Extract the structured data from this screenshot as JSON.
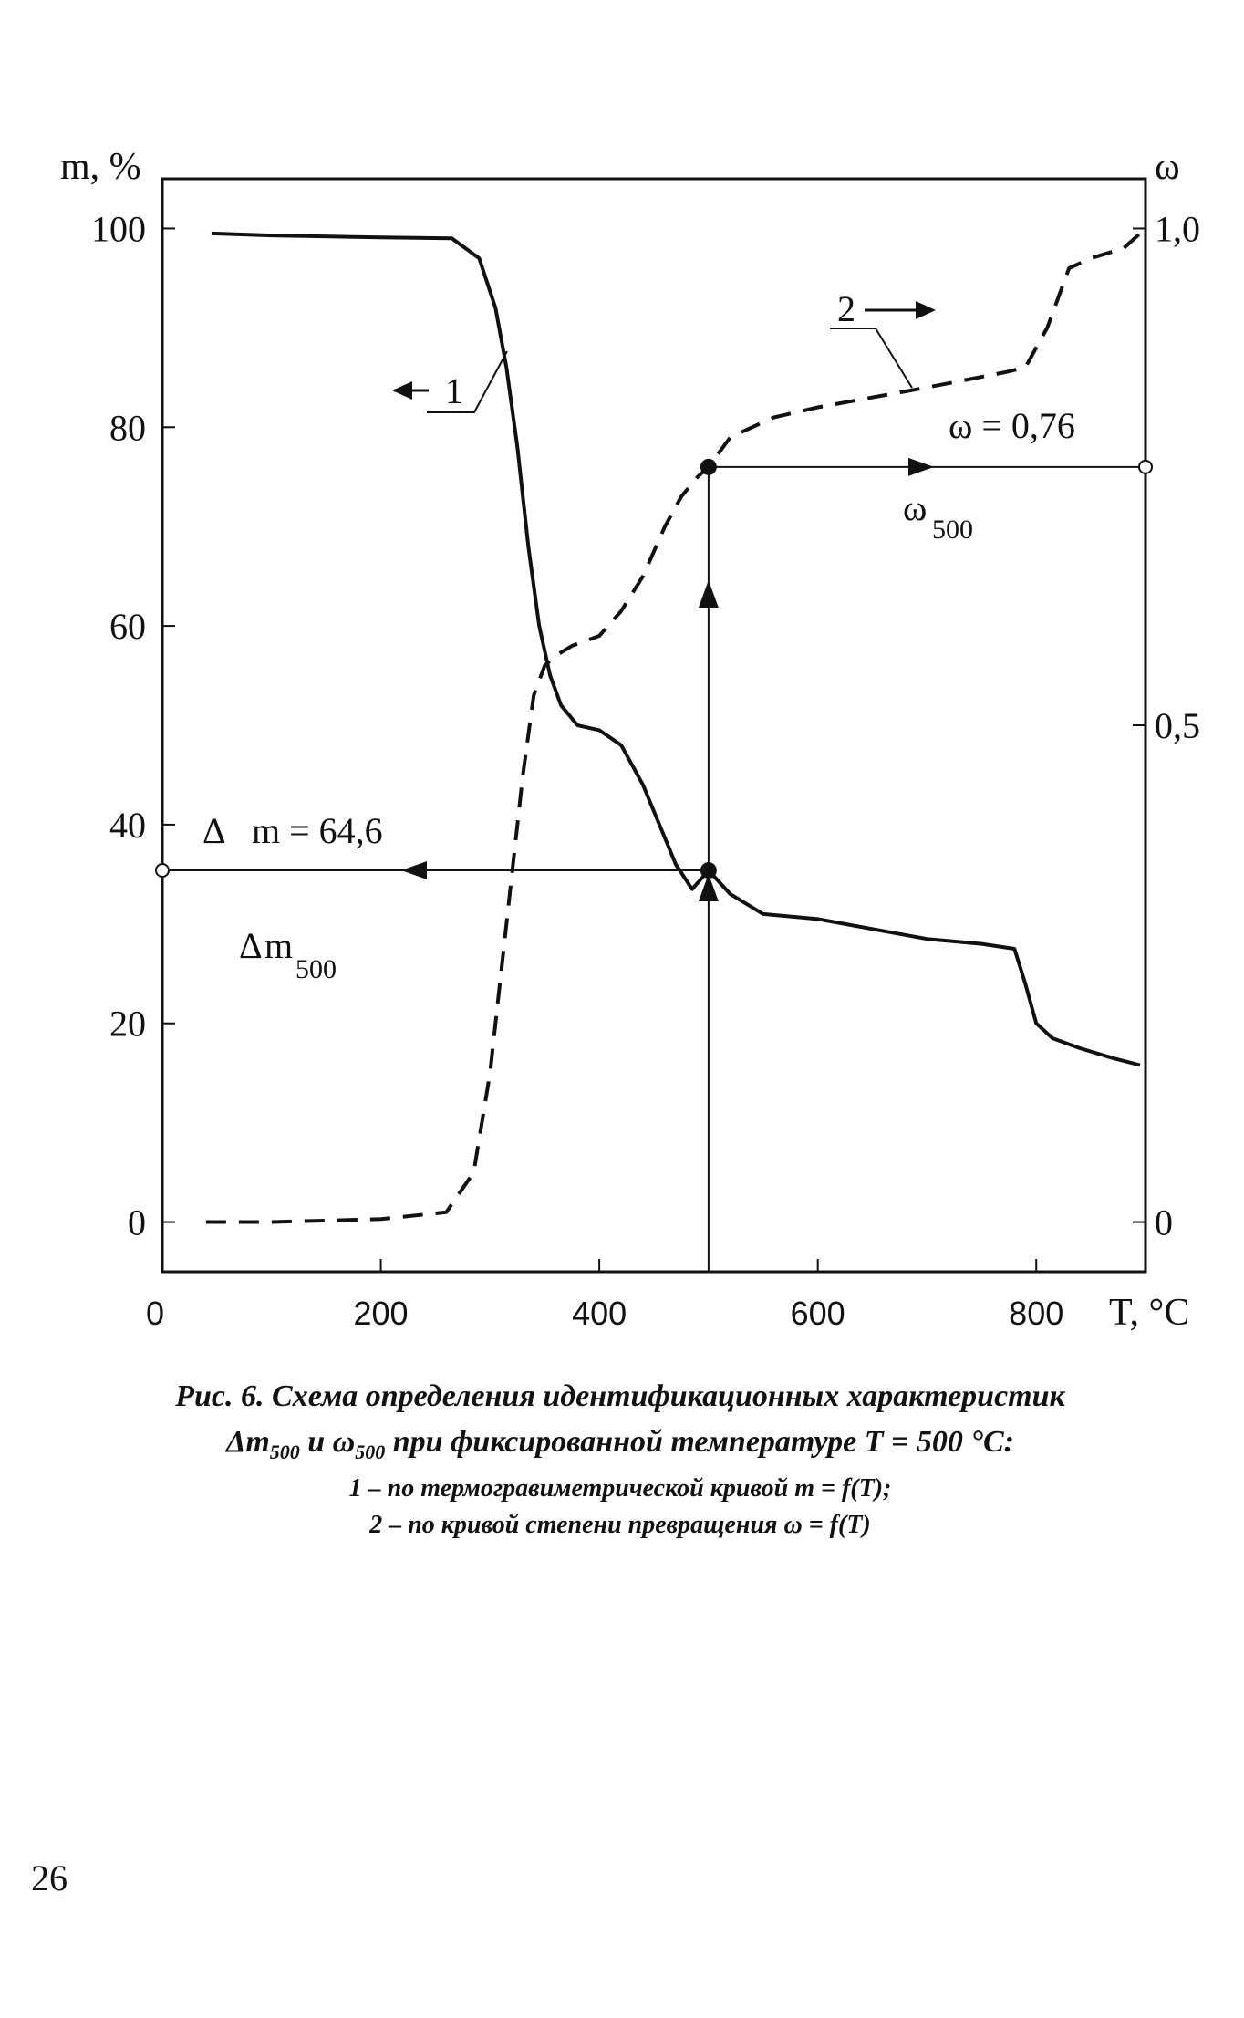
{
  "chart_data": {
    "type": "line",
    "x_axis": {
      "label": "T, °C",
      "range": [
        0,
        900
      ],
      "ticks": [
        0,
        200,
        400,
        600,
        800
      ]
    },
    "y_axis_left": {
      "label": "m, %",
      "range": [
        -5,
        105
      ],
      "ticks": [
        0,
        20,
        40,
        60,
        80,
        100
      ]
    },
    "y_axis_right": {
      "label": "ω",
      "range": [
        -0.05,
        1.05
      ],
      "ticks": [
        0,
        0.5,
        1.0
      ],
      "tick_labels": [
        "0",
        "0,5",
        "1,0"
      ]
    },
    "grid": false,
    "series": [
      {
        "name": "1",
        "axis": "left",
        "style": "solid",
        "x": [
          45,
          100,
          200,
          265,
          290,
          305,
          315,
          325,
          335,
          345,
          355,
          365,
          380,
          400,
          420,
          440,
          455,
          470,
          485,
          500,
          520,
          550,
          600,
          650,
          700,
          750,
          780,
          790,
          800,
          815,
          840,
          870,
          895
        ],
        "y": [
          99.5,
          99.3,
          99.1,
          99,
          97,
          92,
          86,
          78,
          68,
          60,
          55,
          52,
          50,
          49.5,
          48,
          44,
          40,
          36,
          33.5,
          35.4,
          33,
          31,
          30.5,
          29.5,
          28.5,
          28,
          27.5,
          24,
          20,
          18.5,
          17.5,
          16.5,
          15.8
        ]
      },
      {
        "name": "2",
        "axis": "right",
        "style": "dashed",
        "x": [
          40,
          100,
          200,
          260,
          285,
          300,
          315,
          330,
          340,
          350,
          360,
          375,
          400,
          420,
          440,
          460,
          475,
          490,
          500,
          520,
          560,
          600,
          700,
          770,
          790,
          810,
          830,
          850,
          880,
          900
        ],
        "y": [
          0.0,
          0.0,
          0.003,
          0.01,
          0.05,
          0.15,
          0.3,
          0.45,
          0.53,
          0.56,
          0.57,
          0.58,
          0.59,
          0.615,
          0.65,
          0.7,
          0.73,
          0.75,
          0.76,
          0.79,
          0.81,
          0.82,
          0.84,
          0.855,
          0.86,
          0.9,
          0.96,
          0.97,
          0.98,
          1.0
        ]
      }
    ],
    "markers": {
      "temperature": 500,
      "m_value": 35.4,
      "omega_value": 0.76
    },
    "labels": {
      "curve1": "1",
      "curve2": "2",
      "omega_eq": "ω = 0,76",
      "omega_name": "ω",
      "omega_sub": "500",
      "dm_eq_symbol": "Δ",
      "dm_eq_text": "m = 64,6",
      "dm_name_symbol": "Δ",
      "dm_name_text": "m",
      "dm_sub": "500"
    }
  },
  "caption": {
    "line1": "Рис. 6. Схема определения идентификационных характеристик",
    "line2_dm": "Δm",
    "line2_sub1": "500",
    "line2_mid": " и ω",
    "line2_sub2": "500",
    "line2_rest": " при фиксированной температуре T = 500 °C:",
    "line3": "1 – по термогравиметрической кривой m = f(T);",
    "line4": "2 – по кривой степени превращения ω = f(T)"
  },
  "page_number": "26"
}
